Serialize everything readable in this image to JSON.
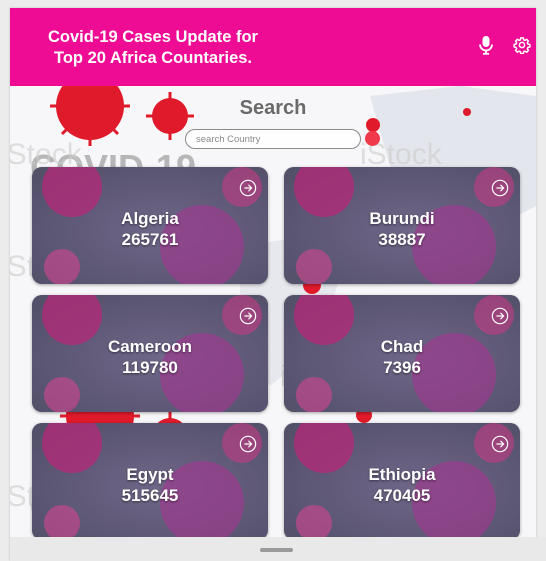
{
  "header": {
    "title": "Covid-19 Cases Update for\nTop 20 Africa Countaries.",
    "mic_icon": "mic-icon",
    "settings_icon": "gear-icon",
    "color": "#ee0c94"
  },
  "background": {
    "watermark_text": "COVID-19",
    "stock_text": "iStock"
  },
  "search": {
    "heading": "Search",
    "placeholder": "search Country",
    "value": ""
  },
  "countries": [
    {
      "name": "Algeria",
      "cases": "265761"
    },
    {
      "name": "Burundi",
      "cases": "38887"
    },
    {
      "name": "Cameroon",
      "cases": "119780"
    },
    {
      "name": "Chad",
      "cases": "7396"
    },
    {
      "name": "Egypt",
      "cases": "515645"
    },
    {
      "name": "Ethiopia",
      "cases": "470405"
    }
  ],
  "card_icon": "arrow-circle-right-icon"
}
